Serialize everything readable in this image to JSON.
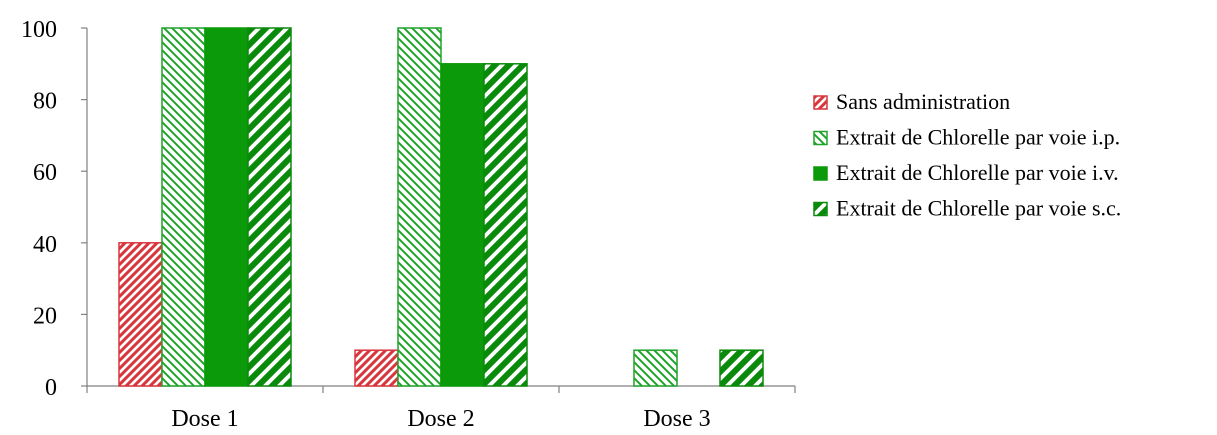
{
  "chart_data": {
    "type": "bar",
    "categories": [
      "Dose 1",
      "Dose 2",
      "Dose 3"
    ],
    "ylim": [
      0,
      100
    ],
    "yticks": [
      0,
      20,
      40,
      60,
      80,
      100
    ],
    "grid": false,
    "legend_position": "right",
    "series": [
      {
        "name": "Sans administration",
        "values": [
          40,
          10,
          0
        ],
        "color": "#d9363e",
        "fill": "diag-up-red"
      },
      {
        "name": "Extrait de Chlorelle par voie i.p.",
        "values": [
          100,
          100,
          10
        ],
        "color": "#21a32b",
        "fill": "diag-down-green"
      },
      {
        "name": "Extrait de Chlorelle par voie i.v.",
        "values": [
          100,
          90,
          0
        ],
        "color": "#0a9a0a",
        "fill": "solid-green"
      },
      {
        "name": "Extrait de Chlorelle par voie s.c.",
        "values": [
          100,
          90,
          10
        ],
        "color": "#0a8a0a",
        "fill": "wide-diag-green"
      }
    ]
  }
}
